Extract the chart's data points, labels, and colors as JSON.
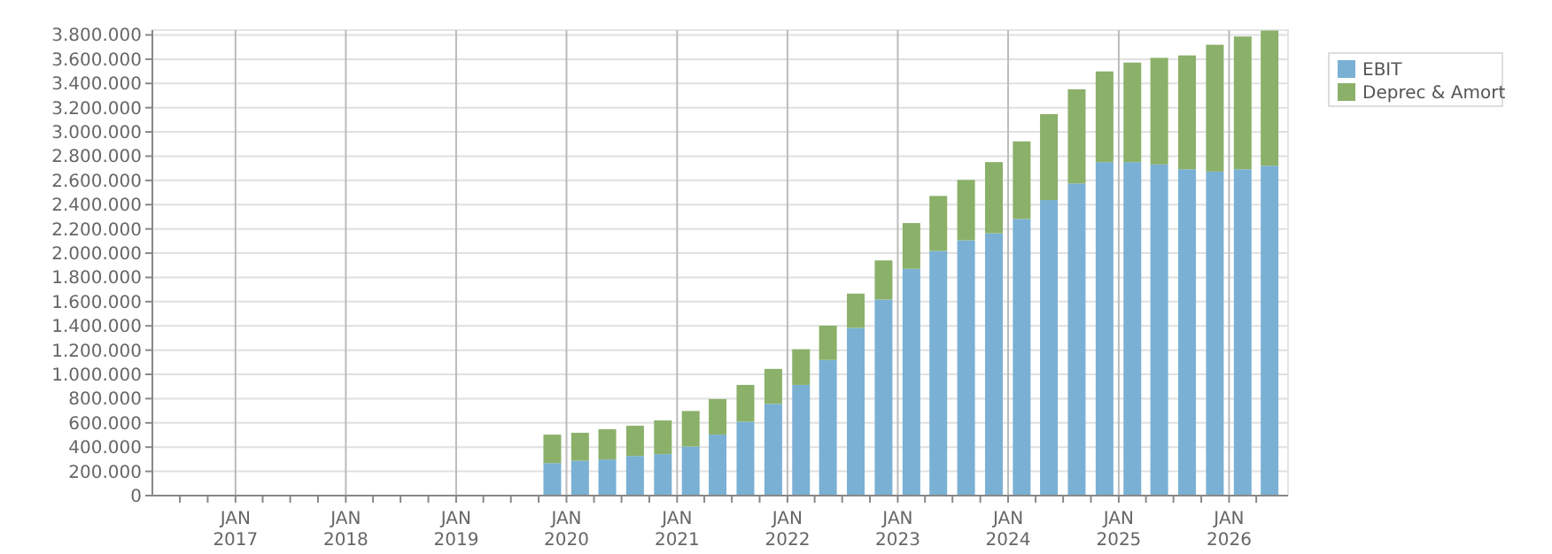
{
  "chart_data": {
    "type": "bar",
    "stacked": true,
    "grid": true,
    "legend": "top right",
    "x": [
      "2019-11-15",
      "2020-02-15",
      "2020-05-15",
      "2020-08-15",
      "2020-11-15",
      "2021-02-15",
      "2021-05-15",
      "2021-08-15",
      "2021-11-15",
      "2022-02-15",
      "2022-05-15",
      "2022-08-15",
      "2022-11-15",
      "2023-02-15",
      "2023-05-15",
      "2023-08-15",
      "2023-11-15",
      "2024-02-15",
      "2024-05-15",
      "2024-08-15",
      "2024-11-15",
      "2025-02-15",
      "2025-05-15",
      "2025-08-15",
      "2025-11-15",
      "2026-02-15",
      "2026-05-15"
    ],
    "series": [
      {
        "name": "EBIT",
        "color": "#7ab0d4",
        "values": [
          268000,
          288000,
          298000,
          327000,
          342000,
          405000,
          503000,
          610000,
          757000,
          913000,
          1119000,
          1383000,
          1617000,
          1871000,
          2018000,
          2106000,
          2164000,
          2282000,
          2438000,
          2575000,
          2751000,
          2751000,
          2732000,
          2692000,
          2673000,
          2692000,
          2721000
        ]
      },
      {
        "name": "Deprec & Amort",
        "color": "#8ab06a",
        "values": [
          235000,
          230000,
          249000,
          249000,
          278000,
          293000,
          293000,
          303000,
          288000,
          294000,
          283000,
          283000,
          323000,
          377000,
          454000,
          498000,
          587000,
          640000,
          709000,
          777000,
          748000,
          821000,
          879000,
          939000,
          1046000,
          1095000,
          1115000
        ]
      }
    ],
    "ylim": [
      0,
      3840000
    ],
    "yticks": [
      {
        "value": 0,
        "label": "0"
      },
      {
        "value": 200000,
        "label": "200.000"
      },
      {
        "value": 400000,
        "label": "400.000"
      },
      {
        "value": 600000,
        "label": "600.000"
      },
      {
        "value": 800000,
        "label": "800.000"
      },
      {
        "value": 1000000,
        "label": "1.000.000"
      },
      {
        "value": 1200000,
        "label": "1.200.000"
      },
      {
        "value": 1400000,
        "label": "1.400.000"
      },
      {
        "value": 1600000,
        "label": "1.600.000"
      },
      {
        "value": 1800000,
        "label": "1.800.000"
      },
      {
        "value": 2000000,
        "label": "2.000.000"
      },
      {
        "value": 2200000,
        "label": "2.200.000"
      },
      {
        "value": 2400000,
        "label": "2.400.000"
      },
      {
        "value": 2600000,
        "label": "2.600.000"
      },
      {
        "value": 2800000,
        "label": "2.800.000"
      },
      {
        "value": 3000000,
        "label": "3.000.000"
      },
      {
        "value": 3200000,
        "label": "3.200.000"
      },
      {
        "value": 3400000,
        "label": "3.400.000"
      },
      {
        "value": 3600000,
        "label": "3.600.000"
      },
      {
        "value": 3800000,
        "label": "3.800.000"
      }
    ],
    "xlim": [
      "2016-04-01",
      "2026-07-15"
    ],
    "xticks": [
      {
        "value": "2016-07",
        "label": null
      },
      {
        "value": "2016-10",
        "label": null
      },
      {
        "value": "2017-01",
        "label": "JAN 2017"
      },
      {
        "value": "2017-04",
        "label": null
      },
      {
        "value": "2017-07",
        "label": null
      },
      {
        "value": "2017-10",
        "label": null
      },
      {
        "value": "2018-01",
        "label": "JAN 2018"
      },
      {
        "value": "2018-04",
        "label": null
      },
      {
        "value": "2018-07",
        "label": null
      },
      {
        "value": "2018-10",
        "label": null
      },
      {
        "value": "2019-01",
        "label": "JAN 2019"
      },
      {
        "value": "2019-04",
        "label": null
      },
      {
        "value": "2019-07",
        "label": null
      },
      {
        "value": "2019-10",
        "label": null
      },
      {
        "value": "2020-01",
        "label": "JAN 2020"
      },
      {
        "value": "2020-04",
        "label": null
      },
      {
        "value": "2020-07",
        "label": null
      },
      {
        "value": "2020-10",
        "label": null
      },
      {
        "value": "2021-01",
        "label": "JAN 2021"
      },
      {
        "value": "2021-04",
        "label": null
      },
      {
        "value": "2021-07",
        "label": null
      },
      {
        "value": "2021-10",
        "label": null
      },
      {
        "value": "2022-01",
        "label": "JAN 2022"
      },
      {
        "value": "2022-04",
        "label": null
      },
      {
        "value": "2022-07",
        "label": null
      },
      {
        "value": "2022-10",
        "label": null
      },
      {
        "value": "2023-01",
        "label": "JAN 2023"
      },
      {
        "value": "2023-04",
        "label": null
      },
      {
        "value": "2023-07",
        "label": null
      },
      {
        "value": "2023-10",
        "label": null
      },
      {
        "value": "2024-01",
        "label": "JAN 2024"
      },
      {
        "value": "2024-04",
        "label": null
      },
      {
        "value": "2024-07",
        "label": null
      },
      {
        "value": "2024-10",
        "label": null
      },
      {
        "value": "2025-01",
        "label": "JAN 2025"
      },
      {
        "value": "2025-04",
        "label": null
      },
      {
        "value": "2025-07",
        "label": null
      },
      {
        "value": "2025-10",
        "label": null
      },
      {
        "value": "2026-01",
        "label": "JAN 2026"
      },
      {
        "value": "2026-04",
        "label": null
      }
    ]
  }
}
